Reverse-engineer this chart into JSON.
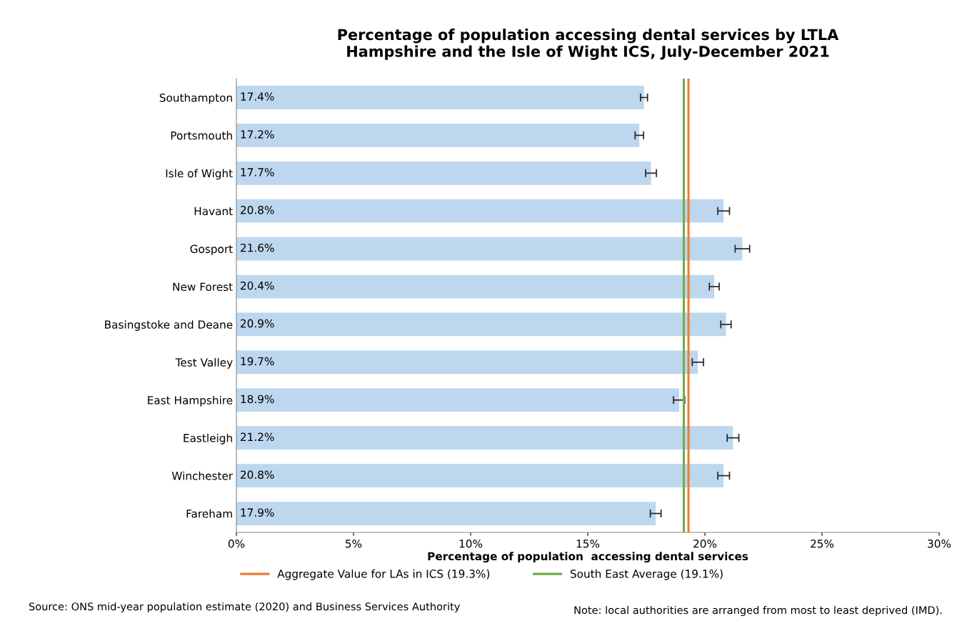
{
  "chart_data": {
    "type": "bar",
    "orientation": "horizontal",
    "title": "Percentage of population accessing dental services by LTLA\nHampshire and the Isle of Wight ICS, July-December 2021",
    "xlabel": "Percentage of population  accessing dental services",
    "categories": [
      "Southampton",
      "Portsmouth",
      "Isle of Wight",
      "Havant",
      "Gosport",
      "New Forest",
      "Basingstoke and Deane",
      "Test Valley",
      "East Hampshire",
      "Eastleigh",
      "Winchester",
      "Fareham"
    ],
    "values": [
      17.4,
      17.2,
      17.7,
      20.8,
      21.6,
      20.4,
      20.9,
      19.7,
      18.9,
      21.2,
      20.8,
      17.9
    ],
    "value_labels": [
      "17.4%",
      "17.2%",
      "17.7%",
      "20.8%",
      "21.6%",
      "20.4%",
      "20.9%",
      "19.7%",
      "18.9%",
      "21.2%",
      "20.8%",
      "17.9%"
    ],
    "errors": [
      0.15,
      0.18,
      0.23,
      0.25,
      0.31,
      0.21,
      0.22,
      0.24,
      0.24,
      0.25,
      0.25,
      0.23
    ],
    "color": "#bdd7ee",
    "xlim": [
      0,
      30
    ],
    "xticks": [
      {
        "value": 0,
        "label": "0%"
      },
      {
        "value": 5,
        "label": "5%"
      },
      {
        "value": 10,
        "label": "10%"
      },
      {
        "value": 15,
        "label": "15%"
      },
      {
        "value": 20,
        "label": "20%"
      },
      {
        "value": 25,
        "label": "25%"
      },
      {
        "value": 30,
        "label": "30%"
      }
    ],
    "ref_lines": [
      {
        "axis": "x",
        "value": 19.3,
        "label": "Aggregate Value for LAs in ICS (19.3%)",
        "color": "#ed7d31"
      },
      {
        "axis": "x",
        "value": 19.1,
        "label": "South East Average (19.1%)",
        "color": "#70ad47"
      }
    ],
    "legend": "bottom",
    "grid": false,
    "annotations": [
      "Source: ONS mid-year population estimate (2020) and Business Services Authority",
      "Note: local authorities are arranged from most to least deprived (IMD)."
    ]
  }
}
